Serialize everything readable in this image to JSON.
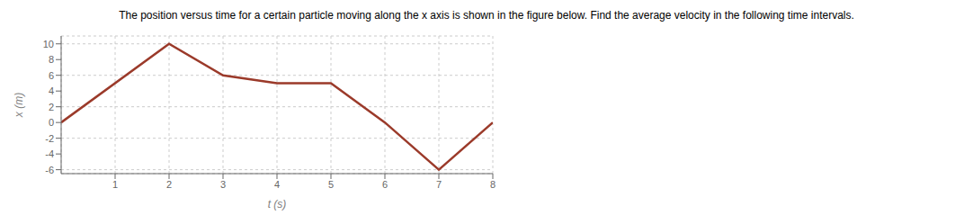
{
  "chart_data": {
    "type": "line",
    "title": "The position versus time for a certain particle moving along the x axis is shown in the figure below. Find the average velocity in the following time intervals.",
    "xlabel": "t (s)",
    "ylabel": "x (m)",
    "x": [
      0,
      2,
      3,
      4,
      5,
      6,
      7,
      8
    ],
    "values": [
      0,
      10,
      6,
      5,
      5,
      0,
      -6,
      0
    ],
    "color": "#9B3A2A",
    "xlim": [
      0,
      8
    ],
    "ylim": [
      -6.5,
      11
    ],
    "xticks": [
      1,
      2,
      3,
      4,
      5,
      6,
      7,
      8
    ],
    "yticks": [
      -6,
      -4,
      -2,
      0,
      2,
      4,
      6,
      8,
      10
    ],
    "grid": true
  }
}
